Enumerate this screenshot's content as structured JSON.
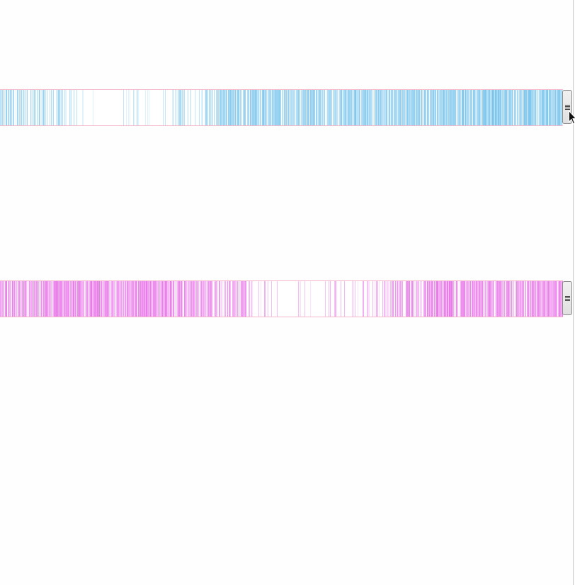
{
  "tracks": [
    {
      "id": "blue",
      "color": "#5cb8e8",
      "border_color": "#f4b6c8",
      "density": [
        0.55,
        0.5,
        0.6,
        0.45,
        0.25,
        0.15,
        0.05,
        0.03,
        0.2,
        0.1,
        0.08,
        0.35,
        0.3,
        0.6,
        0.75,
        0.7,
        0.8,
        0.65,
        0.75,
        0.85,
        0.8,
        0.75,
        0.82,
        0.8,
        0.9,
        0.85,
        0.82,
        0.8,
        0.85,
        0.9,
        0.85,
        0.88,
        0.82,
        0.8,
        0.85,
        0.85
      ],
      "handle_icon": "grip-lines-icon"
    },
    {
      "id": "pink",
      "color": "#e45ee4",
      "border_color": "#f4b6c8",
      "density": [
        0.85,
        0.88,
        0.9,
        0.92,
        0.9,
        0.88,
        0.9,
        0.85,
        0.85,
        0.92,
        0.88,
        0.75,
        0.7,
        0.65,
        0.7,
        0.55,
        0.3,
        0.15,
        0.05,
        0.1,
        0.05,
        0.3,
        0.15,
        0.35,
        0.3,
        0.55,
        0.7,
        0.88,
        0.9,
        0.85,
        0.8,
        0.85,
        0.82,
        0.85,
        0.9,
        0.88
      ],
      "handle_icon": "grip-lines-icon"
    }
  ],
  "cursor": {
    "icon": "mouse-pointer-icon"
  }
}
